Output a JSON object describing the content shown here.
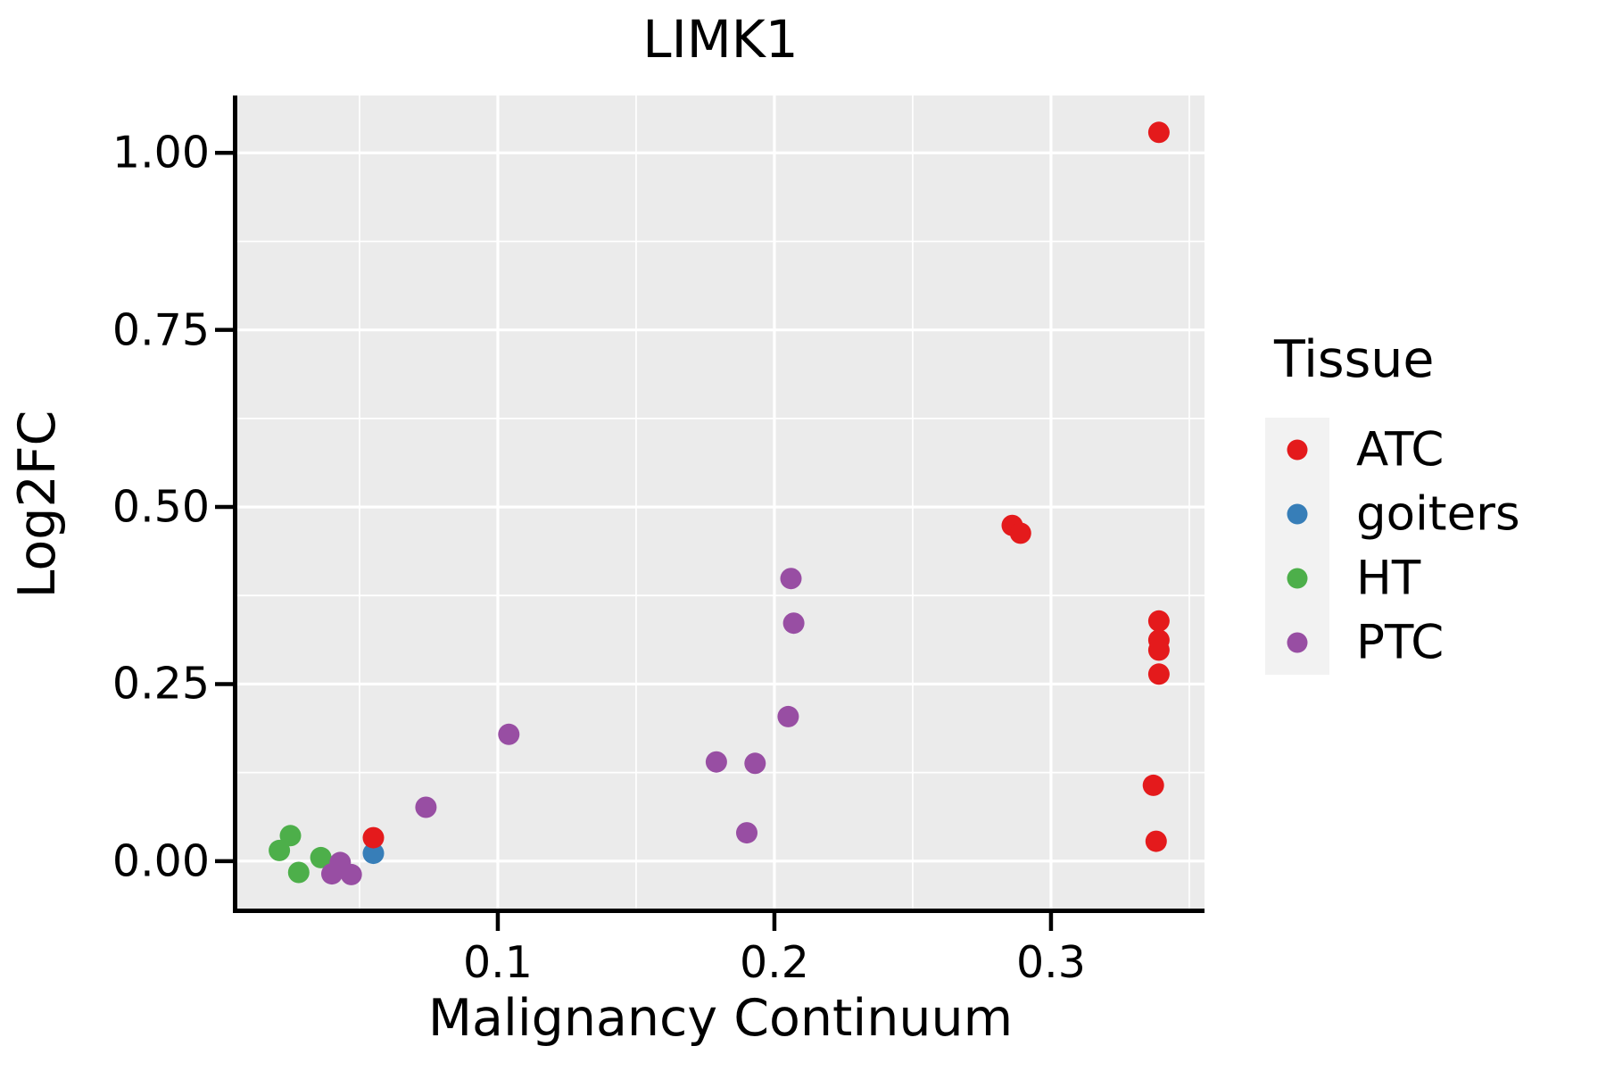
{
  "title": "LIMK1",
  "colors": {
    "panel_bg": "#EBEBEB",
    "grid": "#FFFFFF",
    "axis_line": "#000000",
    "tick": "#000000",
    "text": "#000000",
    "legend_key_bg": "#F2F2F2",
    "atc_red": "#E41A1C",
    "goiters_blue": "#377EB8",
    "ht_green": "#4DAF4A",
    "ptc_purple": "#984EA3"
  },
  "legend": {
    "title": "Tissue",
    "entries": [
      {
        "label": "ATC",
        "color": "#E41A1C"
      },
      {
        "label": "goiters",
        "color": "#377EB8"
      },
      {
        "label": "HT",
        "color": "#4DAF4A"
      },
      {
        "label": "PTC",
        "color": "#984EA3"
      }
    ]
  },
  "chart_data": {
    "type": "scatter",
    "title": "LIMK1",
    "xlabel": "Malignancy Continuum",
    "ylabel": "Log2FC",
    "xlim": [
      0.0055,
      0.3555
    ],
    "ylim": [
      -0.067,
      1.081
    ],
    "grid": "white major and minor gridlines on grey panel",
    "legend_position": "right",
    "legend_title": "Tissue",
    "x_ticks": [
      {
        "value": 0.1,
        "label": "0.1"
      },
      {
        "value": 0.2,
        "label": "0.2"
      },
      {
        "value": 0.3,
        "label": "0.3"
      }
    ],
    "y_ticks": [
      {
        "value": 0.0,
        "label": "0.00"
      },
      {
        "value": 0.25,
        "label": "0.25"
      },
      {
        "value": 0.5,
        "label": "0.50"
      },
      {
        "value": 0.75,
        "label": "0.75"
      },
      {
        "value": 1.0,
        "label": "1.00"
      }
    ],
    "series": [
      {
        "name": "ATC",
        "color": "#E41A1C",
        "points": [
          [
            0.339,
            1.029
          ],
          [
            0.286,
            0.474
          ],
          [
            0.289,
            0.463
          ],
          [
            0.339,
            0.339
          ],
          [
            0.339,
            0.312
          ],
          [
            0.339,
            0.298
          ],
          [
            0.339,
            0.264
          ],
          [
            0.337,
            0.107
          ],
          [
            0.338,
            0.028
          ],
          [
            0.055,
            0.033
          ]
        ]
      },
      {
        "name": "goiters",
        "color": "#377EB8",
        "points": [
          [
            0.055,
            0.011
          ]
        ]
      },
      {
        "name": "HT",
        "color": "#4DAF4A",
        "points": [
          [
            0.025,
            0.036
          ],
          [
            0.021,
            0.015
          ],
          [
            0.028,
            -0.016
          ],
          [
            0.036,
            0.005
          ]
        ]
      },
      {
        "name": "PTC",
        "color": "#984EA3",
        "points": [
          [
            0.043,
            -0.002
          ],
          [
            0.04,
            -0.018
          ],
          [
            0.047,
            -0.019
          ],
          [
            0.074,
            0.076
          ],
          [
            0.104,
            0.179
          ],
          [
            0.179,
            0.14
          ],
          [
            0.193,
            0.138
          ],
          [
            0.19,
            0.04
          ],
          [
            0.205,
            0.204
          ],
          [
            0.207,
            0.336
          ],
          [
            0.206,
            0.399
          ]
        ]
      }
    ]
  }
}
